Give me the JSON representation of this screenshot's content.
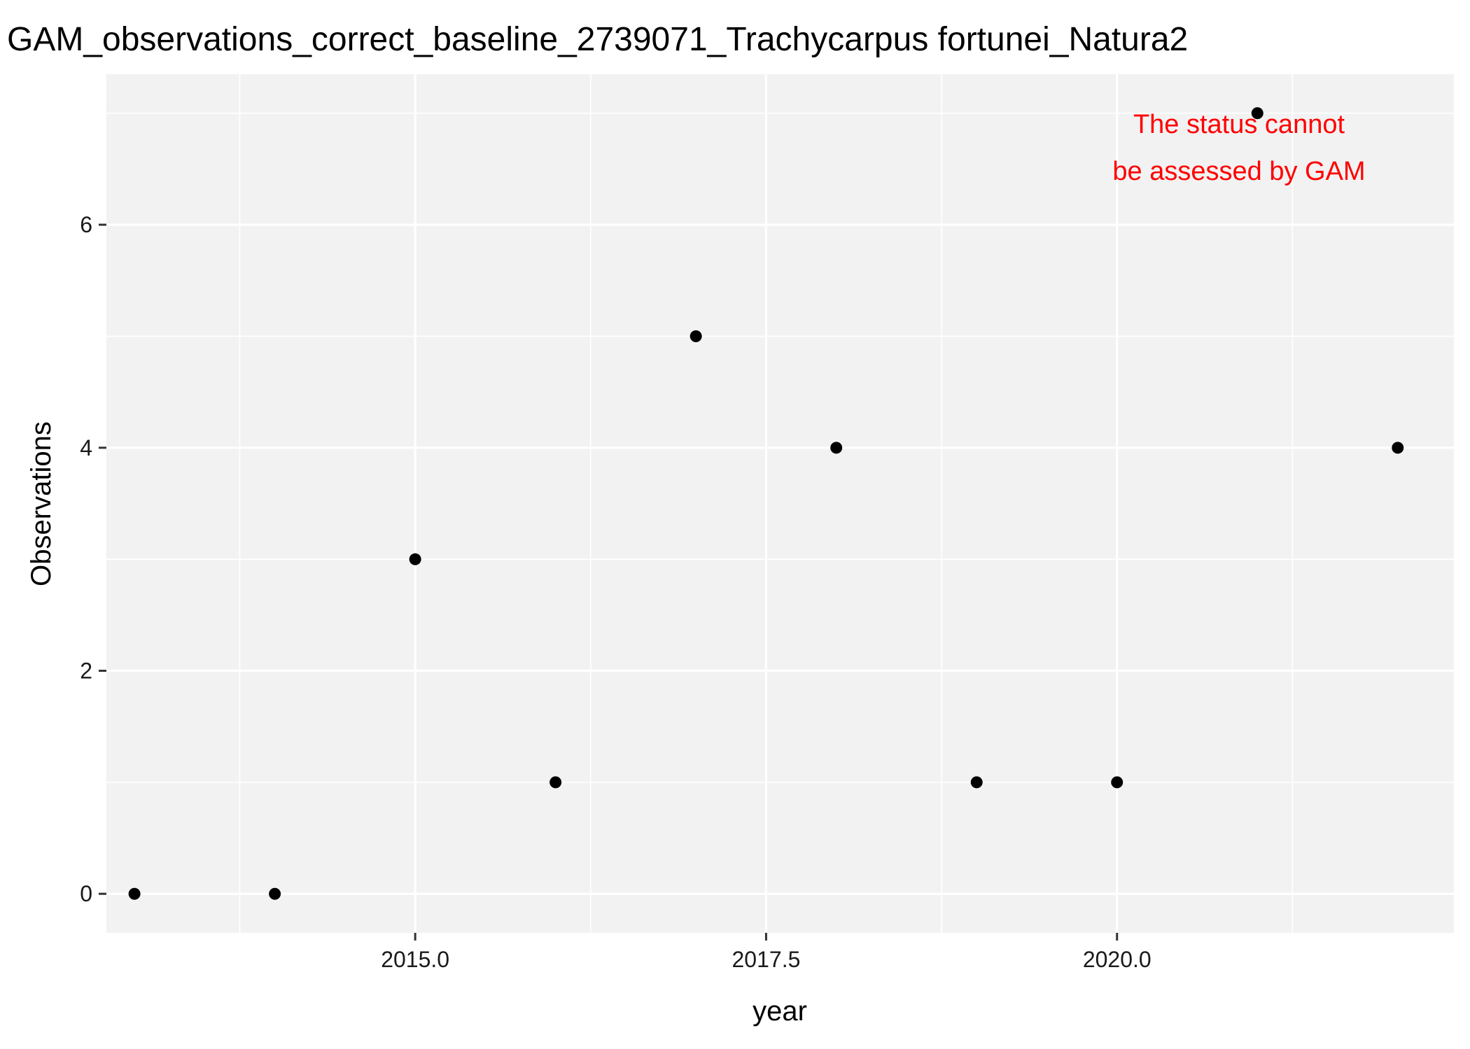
{
  "chart_data": {
    "type": "scatter",
    "title": "GAM_observations_correct_baseline_2739071_Trachycarpus fortunei_Natura2",
    "xlabel": "year",
    "ylabel": "Observations",
    "xlim": [
      2012.8,
      2022.4
    ],
    "ylim": [
      -0.35,
      7.35
    ],
    "x_ticks": [
      2015.0,
      2017.5,
      2020.0
    ],
    "x_tick_labels": [
      "2015.0",
      "2017.5",
      "2020.0"
    ],
    "y_ticks": [
      0,
      2,
      4,
      6
    ],
    "y_tick_labels": [
      "0",
      "2",
      "4",
      "6"
    ],
    "grid": true,
    "points": [
      {
        "x": 2013,
        "y": 0
      },
      {
        "x": 2014,
        "y": 0
      },
      {
        "x": 2015,
        "y": 3
      },
      {
        "x": 2016,
        "y": 1
      },
      {
        "x": 2017,
        "y": 5
      },
      {
        "x": 2018,
        "y": 4
      },
      {
        "x": 2019,
        "y": 1
      },
      {
        "x": 2020,
        "y": 1
      },
      {
        "x": 2021,
        "y": 7
      },
      {
        "x": 2022,
        "y": 4
      }
    ],
    "annotation": {
      "lines": [
        "The status cannot",
        "be assessed by GAM"
      ],
      "color": "#ff0000"
    },
    "colors": {
      "panel_background": "#f2f2f2",
      "grid": "#ffffff",
      "points": "#000000"
    }
  }
}
